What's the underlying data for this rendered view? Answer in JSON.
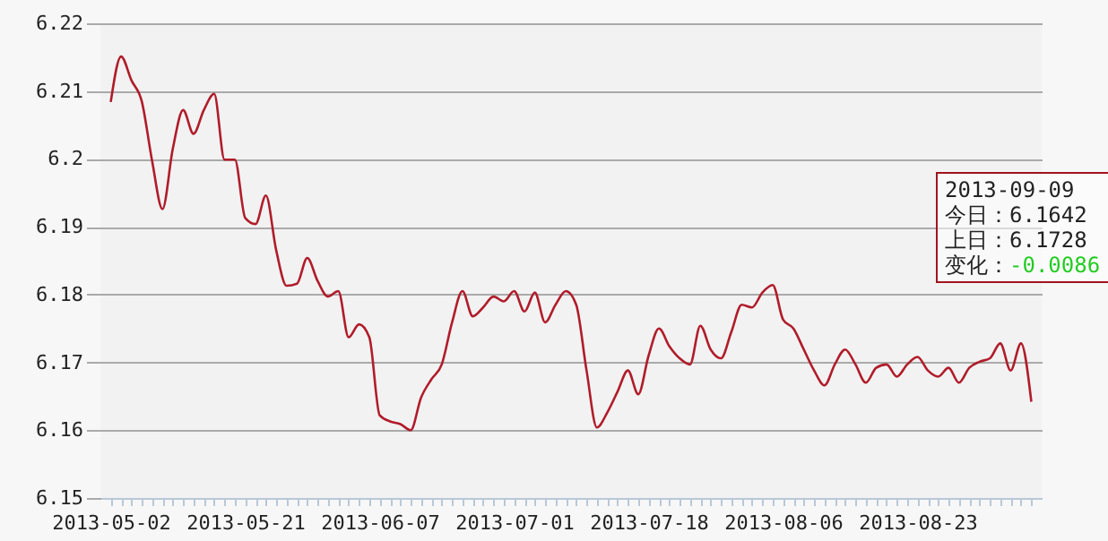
{
  "chart_data": {
    "type": "line",
    "categories": [
      "2013-05-02",
      null,
      null,
      null,
      null,
      null,
      null,
      null,
      null,
      null,
      null,
      null,
      null,
      "2013-05-21",
      null,
      null,
      null,
      null,
      null,
      null,
      null,
      null,
      null,
      null,
      null,
      null,
      "2013-06-07",
      null,
      null,
      null,
      null,
      null,
      null,
      null,
      null,
      null,
      null,
      null,
      null,
      "2013-07-01",
      null,
      null,
      null,
      null,
      null,
      null,
      null,
      null,
      null,
      null,
      null,
      null,
      "2013-07-18",
      null,
      null,
      null,
      null,
      null,
      null,
      null,
      null,
      null,
      null,
      null,
      null,
      "2013-08-06",
      null,
      null,
      null,
      null,
      null,
      null,
      null,
      null,
      null,
      null,
      null,
      null,
      "2013-08-23",
      null,
      null,
      null,
      null,
      null,
      null,
      null,
      null,
      null,
      null,
      null
    ],
    "series": [
      {
        "color": "#b01c2a",
        "values": [
          6.2084,
          6.2151,
          6.2116,
          6.2085,
          6.1997,
          6.1926,
          6.2015,
          6.2072,
          6.2037,
          6.2072,
          6.2096,
          6.1999,
          6.1999,
          6.1913,
          6.1904,
          6.1946,
          6.1865,
          6.1813,
          6.1816,
          6.1854,
          6.182,
          6.1797,
          6.1805,
          6.1737,
          6.1756,
          6.1737,
          6.1622,
          6.1613,
          6.1609,
          6.16,
          6.1648,
          6.1675,
          6.1697,
          6.1759,
          6.1805,
          6.1768,
          6.1781,
          6.1797,
          6.179,
          6.1805,
          6.1775,
          6.1803,
          6.1759,
          6.1785,
          6.1805,
          6.1785,
          6.1688,
          6.1604,
          6.1626,
          6.1657,
          6.1688,
          6.1653,
          6.171,
          6.175,
          6.1724,
          6.1706,
          6.1697,
          6.1754,
          6.1719,
          6.1706,
          6.1745,
          6.1785,
          6.1781,
          6.1803,
          6.1814,
          6.1763,
          6.175,
          6.1719,
          6.1688,
          6.1666,
          6.1697,
          6.1719,
          6.1697,
          6.167,
          6.1692,
          6.1697,
          6.1679,
          6.1697,
          6.1708,
          6.1688,
          6.1679,
          6.1692,
          6.167,
          6.1692,
          6.1701,
          6.1706,
          6.1728,
          6.1688,
          6.1728,
          6.1642
        ]
      }
    ],
    "ylim": [
      6.15,
      6.22
    ],
    "yticks": [
      6.15,
      6.16,
      6.17,
      6.18,
      6.19,
      6.2,
      6.21,
      6.22
    ],
    "grid": "y",
    "line_style": "solid",
    "annotations": [
      "2013-09-09",
      "今日：6.1642",
      "上日：6.1728",
      "变化：-0.0086"
    ]
  }
}
